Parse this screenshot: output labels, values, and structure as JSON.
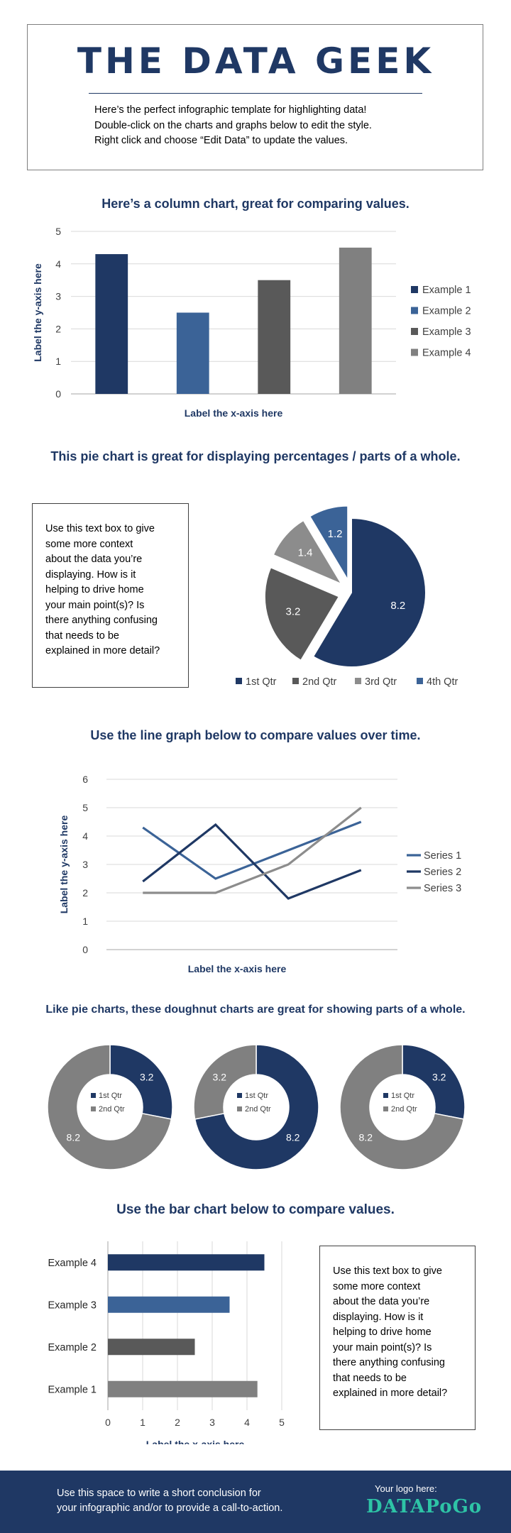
{
  "header": {
    "title": "THE DATA GEEK",
    "intro_lines": [
      "Here’s the perfect infographic template for highlighting data!",
      "Double-click on the charts and graphs below to edit the style.",
      "Right click and choose “Edit Data” to update the values."
    ]
  },
  "sections": {
    "column_title": "Here’s a column chart, great for comparing values.",
    "pie_title": "This pie chart is great for displaying percentages / parts of a whole.",
    "line_title": "Use the line graph below to compare values over time.",
    "doughnut_title": "Like pie charts, these doughnut charts are great for showing parts of a whole.",
    "bar_title": "Use the bar chart below to compare values."
  },
  "textbox": {
    "lines": [
      "Use this text box to give",
      "some more context",
      "about the data you’re",
      "displaying. How is it",
      "helping to drive home",
      "your main point(s)? Is",
      "there anything confusing",
      "that needs to be",
      "explained in more detail?"
    ]
  },
  "footer": {
    "lines": [
      "Use this space to write a short conclusion for",
      "your infographic and/or to provide a call-to-action."
    ],
    "logo_label": "Your logo here:",
    "logo_text": "DATAPoGo"
  },
  "colors": {
    "navy": "#1f3864",
    "blue": "#3b6397",
    "dark_gray": "#595959",
    "gray": "#7f7f7f",
    "light_gray": "#a6a6a6"
  },
  "chart_data": [
    {
      "type": "bar",
      "orientation": "vertical",
      "categories": [
        "Example 1",
        "Example 2",
        "Example 3",
        "Example 4"
      ],
      "values": [
        4.3,
        2.5,
        3.5,
        4.5
      ],
      "colors": [
        "#1f3864",
        "#3b6397",
        "#595959",
        "#808080"
      ],
      "xlabel": "Label the x-axis here",
      "ylabel": "Label the y-axis here",
      "ylim": [
        0,
        5
      ],
      "yticks": [
        0,
        1,
        2,
        3,
        4,
        5
      ],
      "legend": "right",
      "grid": true
    },
    {
      "type": "pie",
      "categories": [
        "1st Qtr",
        "2nd Qtr",
        "3rd Qtr",
        "4th Qtr"
      ],
      "values": [
        8.2,
        3.2,
        1.4,
        1.2
      ],
      "labels": [
        "8.2",
        "3.2",
        "1.4",
        "1.2"
      ],
      "colors": [
        "#1f3864",
        "#595959",
        "#8c8c8c",
        "#3b6397"
      ],
      "exploded": [
        false,
        true,
        true,
        true
      ],
      "legend": "bottom"
    },
    {
      "type": "line",
      "x": [
        "1",
        "2",
        "3",
        "4"
      ],
      "series": [
        {
          "name": "Series 1",
          "values": [
            4.3,
            2.5,
            3.5,
            4.5
          ],
          "color": "#3b6397"
        },
        {
          "name": "Series 2",
          "values": [
            2.4,
            4.4,
            1.8,
            2.8
          ],
          "color": "#1f3864"
        },
        {
          "name": "Series 3",
          "values": [
            2.0,
            2.0,
            3.0,
            5.0
          ],
          "color": "#8c8c8c"
        }
      ],
      "xlabel": "Label the x-axis here",
      "ylabel": "Label the y-axis here",
      "ylim": [
        0,
        6
      ],
      "yticks": [
        0,
        1,
        2,
        3,
        4,
        5,
        6
      ],
      "legend": "right",
      "grid": true
    },
    {
      "type": "doughnut",
      "categories": [
        "1st Qtr",
        "2nd Qtr"
      ],
      "values": [
        3.2,
        8.2
      ],
      "labels": [
        "3.2",
        "8.2"
      ],
      "colors": [
        "#1f3864",
        "#808080"
      ],
      "legend": "center"
    },
    {
      "type": "doughnut",
      "categories": [
        "1st Qtr",
        "2nd Qtr"
      ],
      "values": [
        8.2,
        3.2
      ],
      "labels": [
        "8.2",
        "3.2"
      ],
      "colors": [
        "#1f3864",
        "#808080"
      ],
      "legend": "center"
    },
    {
      "type": "doughnut",
      "categories": [
        "1st Qtr",
        "2nd Qtr"
      ],
      "values": [
        3.2,
        8.2
      ],
      "labels": [
        "3.2",
        "8.2"
      ],
      "colors": [
        "#1f3864",
        "#808080"
      ],
      "legend": "center"
    },
    {
      "type": "bar",
      "orientation": "horizontal",
      "categories": [
        "Example 4",
        "Example 3",
        "Example 2",
        "Example 1"
      ],
      "values": [
        4.5,
        3.5,
        2.5,
        4.3
      ],
      "colors": [
        "#1f3864",
        "#3b6397",
        "#595959",
        "#808080"
      ],
      "xlabel": "Label the x-axis here",
      "xlim": [
        0,
        5
      ],
      "xticks": [
        0,
        1,
        2,
        3,
        4,
        5
      ],
      "grid": true
    }
  ]
}
